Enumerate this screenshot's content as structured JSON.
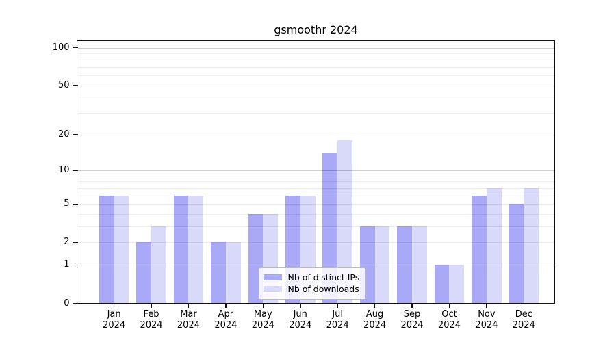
{
  "chart_data": {
    "type": "bar",
    "title": "gsmoothr 2024",
    "x": [
      "Jan 2024",
      "Feb 2024",
      "Mar 2024",
      "Apr 2024",
      "May 2024",
      "Jun 2024",
      "Jul 2024",
      "Aug 2024",
      "Sep 2024",
      "Oct 2024",
      "Nov 2024",
      "Dec 2024"
    ],
    "x_tick_months": [
      "Jan",
      "Feb",
      "Mar",
      "Apr",
      "May",
      "Jun",
      "Jul",
      "Aug",
      "Sep",
      "Oct",
      "Nov",
      "Dec"
    ],
    "x_tick_year": "2024",
    "series": [
      {
        "name": "Nb of distinct IPs",
        "color": "#a9a9f8",
        "values": [
          6,
          2,
          6,
          2,
          4,
          6,
          14,
          3,
          3,
          1,
          6,
          5
        ]
      },
      {
        "name": "Nb of downloads",
        "color": "#d9d9f9",
        "values": [
          6,
          3,
          6,
          2,
          4,
          6,
          18,
          3,
          3,
          1,
          7,
          7
        ]
      }
    ],
    "yscale": "log1p",
    "ylim": [
      0,
      112
    ],
    "ytick_values": [
      0,
      1,
      2,
      5,
      10,
      20,
      50,
      100
    ],
    "ytick_labels": [
      "0",
      "1",
      "2",
      "5",
      "10",
      "20",
      "50",
      "100"
    ],
    "grid": {
      "major_values": [
        1,
        10,
        100
      ],
      "minor_values": [
        2,
        3,
        4,
        5,
        6,
        7,
        8,
        9,
        20,
        30,
        40,
        50,
        60,
        70,
        80,
        90
      ],
      "major_color": "rgba(0,0,0,0.20)",
      "minor_color": "rgba(0,0,0,0.07)"
    },
    "legend": {
      "position": "bottom-center",
      "entries": [
        "Nb of distinct IPs",
        "Nb of downloads"
      ]
    },
    "xlabel": "",
    "ylabel": ""
  },
  "colors": {
    "background": "#ffffff",
    "frame": "#111111",
    "bar_distinct_ips": "#a9a9f8",
    "bar_downloads": "#d9d9f9"
  }
}
